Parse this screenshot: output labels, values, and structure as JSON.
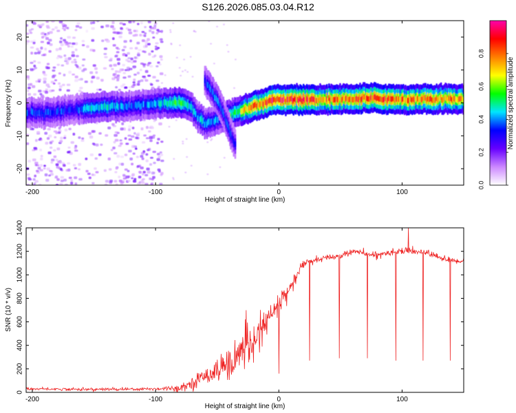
{
  "title": "S126.2026.085.03.04.R12",
  "chart_data": [
    {
      "type": "heatmap",
      "name": "spectrogram",
      "xlabel": "Height of straight line (km)",
      "ylabel": "Frequency (Hz)",
      "xlim": [
        -205,
        150
      ],
      "ylim": [
        -25,
        25
      ],
      "xticks": [
        -200,
        -100,
        0,
        100
      ],
      "yticks": [
        -20,
        -10,
        0,
        10,
        20
      ],
      "colorbar": {
        "label": "Normalized spectral amplitude",
        "range": [
          0,
          1
        ],
        "ticks": [
          "0.0",
          "0.2",
          "0.4",
          "0.6",
          "0.8"
        ],
        "tick_values": [
          0.0,
          0.2,
          0.4,
          0.6,
          0.8
        ],
        "colors": [
          "#ffffff",
          "#cc88ff",
          "#6600ff",
          "#0000ff",
          "#00e5ff",
          "#00ff00",
          "#ffff00",
          "#ff7f00",
          "#ff0000",
          "#ff00aa"
        ]
      },
      "ridge": {
        "name": "main-ridge",
        "x": [
          -205,
          -185,
          -165,
          -150,
          -135,
          -120,
          -105,
          -92,
          -85,
          -78,
          -72,
          -66,
          -60,
          -55,
          -48,
          -42,
          -36,
          -32,
          -27,
          -20,
          -12,
          -5,
          0,
          10,
          20,
          40,
          60,
          80,
          100,
          120,
          150
        ],
        "y": [
          -3,
          -3,
          -2,
          -1.5,
          -1,
          -1,
          -0.5,
          0,
          0,
          0,
          -1,
          -4,
          -6,
          -6,
          -5,
          -4,
          -3,
          -3,
          -2,
          -1,
          0,
          1,
          1,
          1,
          1,
          1,
          1.2,
          1.4,
          1,
          1.2,
          1.2
        ],
        "amplitude": [
          0.35,
          0.35,
          0.35,
          0.45,
          0.45,
          0.35,
          0.4,
          0.45,
          0.5,
          0.55,
          0.45,
          0.4,
          0.45,
          0.4,
          0.4,
          0.5,
          0.5,
          0.55,
          0.7,
          0.8,
          0.85,
          0.95,
          0.9,
          0.85,
          0.85,
          0.8,
          0.8,
          0.85,
          0.8,
          0.8,
          0.75
        ]
      },
      "branch": {
        "name": "upper-branch",
        "x": [
          -60,
          -55,
          -50,
          -45,
          -40,
          -35
        ],
        "y": [
          7,
          4,
          1,
          -3,
          -8,
          -13
        ],
        "amplitude": [
          0.35,
          0.4,
          0.4,
          0.35,
          0.35,
          0.3
        ]
      },
      "noise_region_x": [
        -205,
        -95
      ],
      "noise_amplitude": 0.15,
      "dense_band_x": [
        -205,
        -100
      ]
    },
    {
      "type": "line",
      "name": "snr",
      "xlabel": "Height of straight line (km)",
      "ylabel": "SNR (10 * v/v)",
      "xlim": [
        -205,
        150
      ],
      "ylim": [
        0,
        1400
      ],
      "xticks": [
        -200,
        -100,
        0,
        100
      ],
      "yticks": [
        0,
        200,
        400,
        600,
        800,
        1000,
        1200,
        1400
      ],
      "color": "#ee2222",
      "envelope": {
        "x": [
          -205,
          -150,
          -100,
          -80,
          -70,
          -60,
          -50,
          -40,
          -30,
          -20,
          -10,
          0,
          10,
          15,
          20,
          30,
          40,
          50,
          60,
          70,
          80,
          90,
          100,
          110,
          120,
          130,
          140,
          150
        ],
        "y": [
          30,
          25,
          30,
          40,
          80,
          140,
          200,
          250,
          350,
          450,
          600,
          750,
          900,
          1000,
          1100,
          1120,
          1150,
          1160,
          1200,
          1180,
          1170,
          1190,
          1210,
          1200,
          1190,
          1150,
          1120,
          1120
        ]
      },
      "noise": {
        "x": [
          -205,
          -100,
          -80,
          -60,
          -50,
          -40,
          -30,
          -20,
          -10,
          0,
          10,
          20,
          30,
          150
        ],
        "y": [
          12,
          15,
          30,
          80,
          120,
          160,
          200,
          150,
          120,
          100,
          80,
          50,
          30,
          30
        ]
      },
      "dips": [
        {
          "x": 0,
          "y": 160
        },
        {
          "x": 25,
          "y": 270
        },
        {
          "x": 49,
          "y": 290
        },
        {
          "x": 72,
          "y": 290
        },
        {
          "x": 95,
          "y": 270
        },
        {
          "x": 117,
          "y": 270
        },
        {
          "x": 139,
          "y": 270
        }
      ],
      "peak": {
        "x": 105,
        "y": 1400
      }
    }
  ]
}
